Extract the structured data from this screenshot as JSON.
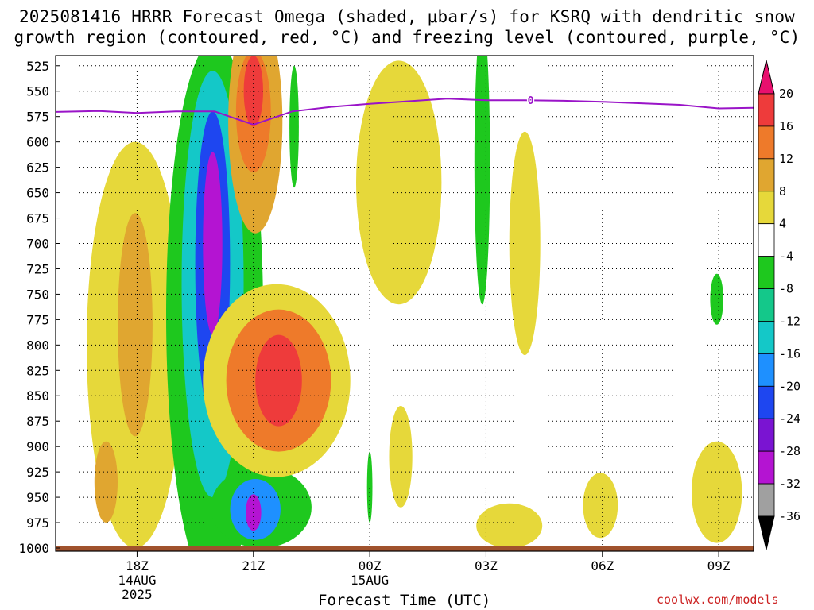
{
  "title": {
    "line1": "2025081416 HRRR Forecast Omega (shaded, μbar/s) for KSRQ with dendritic snow",
    "line2": "growth region (contoured, red, °C) and freezing level (contoured, purple, °C)"
  },
  "credit": "coolwx.com/models",
  "chart_data": {
    "type": "heatmap",
    "title": "2025081416 HRRR Forecast Omega (shaded, μbar/s) for KSRQ with dendritic snow growth region (contoured, red, °C) and freezing level (contoured, purple, °C)",
    "xlabel": "Forecast Time (UTC)",
    "ylabel": "",
    "y_axis": {
      "orientation": "inverted",
      "range": [
        1000,
        515
      ],
      "ticks": [
        525,
        550,
        575,
        600,
        625,
        650,
        675,
        700,
        725,
        750,
        775,
        800,
        825,
        850,
        875,
        900,
        925,
        950,
        975,
        1000
      ]
    },
    "x_axis": {
      "range_hours_utc": [
        15.9,
        33.9
      ],
      "ticks": [
        {
          "hour": 18,
          "label": "18Z",
          "sub1": "14AUG",
          "sub2": "2025"
        },
        {
          "hour": 21,
          "label": "21Z",
          "sub1": "",
          "sub2": ""
        },
        {
          "hour": 24,
          "label": "00Z",
          "sub1": "15AUG",
          "sub2": ""
        },
        {
          "hour": 27,
          "label": "03Z",
          "sub1": "",
          "sub2": ""
        },
        {
          "hour": 30,
          "label": "06Z",
          "sub1": "",
          "sub2": ""
        },
        {
          "hour": 33,
          "label": "09Z",
          "sub1": "",
          "sub2": ""
        }
      ]
    },
    "grid": true,
    "colorbar": {
      "labels": [
        "20",
        "16",
        "12",
        "8",
        "4",
        "-4",
        "-8",
        "-12",
        "-16",
        "-20",
        "-24",
        "-28",
        "-32",
        "-36"
      ],
      "colors": [
        "#e8106e",
        "#ee3b3b",
        "#ee7a2a",
        "#e0a630",
        "#e6d83a",
        "#ffffff",
        "#1ec81e",
        "#14c88a",
        "#14c8c8",
        "#1e90ff",
        "#1e46f0",
        "#7a14d2",
        "#b414d2",
        "#a0a0a0",
        "#000000"
      ]
    },
    "omega_regions": [
      {
        "center": [
          17.95,
          800
        ],
        "rx": 1.25,
        "ry": 200,
        "value": 6
      },
      {
        "center": [
          17.95,
          780
        ],
        "rx": 0.45,
        "ry": 110,
        "value": 10
      },
      {
        "center": [
          17.2,
          935
        ],
        "rx": 0.3,
        "ry": 40,
        "value": 10
      },
      {
        "center": [
          20.0,
          770
        ],
        "rx": 1.25,
        "ry": 270,
        "value": -6
      },
      {
        "center": [
          19.95,
          740
        ],
        "rx": 0.8,
        "ry": 210,
        "value": -12
      },
      {
        "center": [
          19.95,
          720
        ],
        "rx": 0.45,
        "ry": 150,
        "value": -20
      },
      {
        "center": [
          19.95,
          700
        ],
        "rx": 0.25,
        "ry": 90,
        "value": -30
      },
      {
        "center": [
          21.2,
          960
        ],
        "rx": 1.3,
        "ry": 40,
        "value": -6
      },
      {
        "center": [
          21.05,
          962
        ],
        "rx": 0.65,
        "ry": 30,
        "value": -16
      },
      {
        "center": [
          21.0,
          965
        ],
        "rx": 0.2,
        "ry": 18,
        "value": -28
      },
      {
        "center": [
          21.6,
          835
        ],
        "rx": 1.9,
        "ry": 95,
        "value": 6
      },
      {
        "center": [
          21.65,
          835
        ],
        "rx": 1.35,
        "ry": 70,
        "value": 12
      },
      {
        "center": [
          21.65,
          835
        ],
        "rx": 0.6,
        "ry": 45,
        "value": 19
      },
      {
        "center": [
          21.05,
          580
        ],
        "rx": 0.7,
        "ry": 110,
        "value": 8
      },
      {
        "center": [
          21.0,
          570
        ],
        "rx": 0.45,
        "ry": 60,
        "value": 14
      },
      {
        "center": [
          21.0,
          550
        ],
        "rx": 0.25,
        "ry": 35,
        "value": 19
      },
      {
        "center": [
          22.05,
          585
        ],
        "rx": 0.12,
        "ry": 60,
        "value": -6
      },
      {
        "center": [
          24.75,
          640
        ],
        "rx": 1.1,
        "ry": 120,
        "value": 6
      },
      {
        "center": [
          24.8,
          910
        ],
        "rx": 0.3,
        "ry": 50,
        "value": 6
      },
      {
        "center": [
          24.0,
          940
        ],
        "rx": 0.07,
        "ry": 35,
        "value": -6
      },
      {
        "center": [
          26.9,
          620
        ],
        "rx": 0.2,
        "ry": 140,
        "value": -6
      },
      {
        "center": [
          28.0,
          700
        ],
        "rx": 0.4,
        "ry": 110,
        "value": 6
      },
      {
        "center": [
          27.6,
          978
        ],
        "rx": 0.85,
        "ry": 22,
        "value": 6
      },
      {
        "center": [
          29.95,
          958
        ],
        "rx": 0.45,
        "ry": 32,
        "value": 6
      },
      {
        "center": [
          32.95,
          945
        ],
        "rx": 0.65,
        "ry": 50,
        "value": 6
      },
      {
        "center": [
          32.95,
          755
        ],
        "rx": 0.17,
        "ry": 25,
        "value": -6
      }
    ],
    "freezing_level": {
      "label": "0",
      "x": [
        15.9,
        17.0,
        18.0,
        19.0,
        20.0,
        21.0,
        22.0,
        23.0,
        24.0,
        25.0,
        26.0,
        27.0,
        28.0,
        29.0,
        30.0,
        31.0,
        32.0,
        33.0,
        33.9
      ],
      "y": [
        570.5,
        569.5,
        571.5,
        570.0,
        570.0,
        583.0,
        570.0,
        565.5,
        562.5,
        560.0,
        557.5,
        559.0,
        559.0,
        559.5,
        560.5,
        562.0,
        563.5,
        567.0,
        566.5
      ]
    },
    "surface_band_color": "#a0522d"
  }
}
